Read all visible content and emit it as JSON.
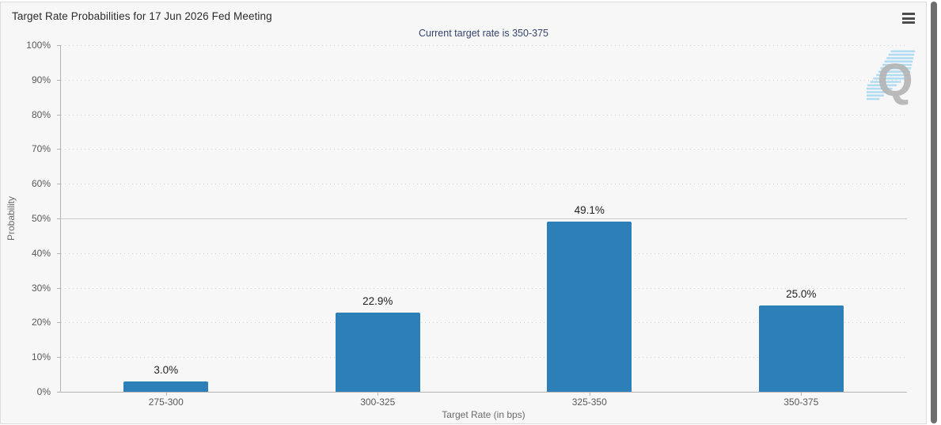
{
  "header": {
    "menu_icon": "hamburger-menu-icon"
  },
  "chart_data": {
    "type": "bar",
    "title": "Target Rate Probabilities for 17 Jun 2026 Fed Meeting",
    "subtitle": "Current target rate is 350-375",
    "categories": [
      "275-300",
      "300-325",
      "325-350",
      "350-375"
    ],
    "values": [
      3.0,
      22.9,
      49.1,
      25.0
    ],
    "value_labels": [
      "3.0%",
      "22.9%",
      "49.1%",
      "25.0%"
    ],
    "xlabel": "Target Rate (in bps)",
    "ylabel": "Probability",
    "ylim": [
      0,
      100
    ],
    "yticks": [
      0,
      10,
      20,
      30,
      40,
      50,
      60,
      70,
      80,
      90,
      100
    ],
    "ytick_labels": [
      "0%",
      "10%",
      "20%",
      "30%",
      "40%",
      "50%",
      "60%",
      "70%",
      "80%",
      "90%",
      "100%"
    ],
    "grid": "dotted-horizontal",
    "solid_gridline_at": 50,
    "legend": "none",
    "bar_color": "#2d7fb8",
    "subtitle_color": "#36436e"
  },
  "watermark": {
    "letter": "Q",
    "letter_color": "#a8a8a8",
    "stripe_color": "#a5d8f0"
  }
}
